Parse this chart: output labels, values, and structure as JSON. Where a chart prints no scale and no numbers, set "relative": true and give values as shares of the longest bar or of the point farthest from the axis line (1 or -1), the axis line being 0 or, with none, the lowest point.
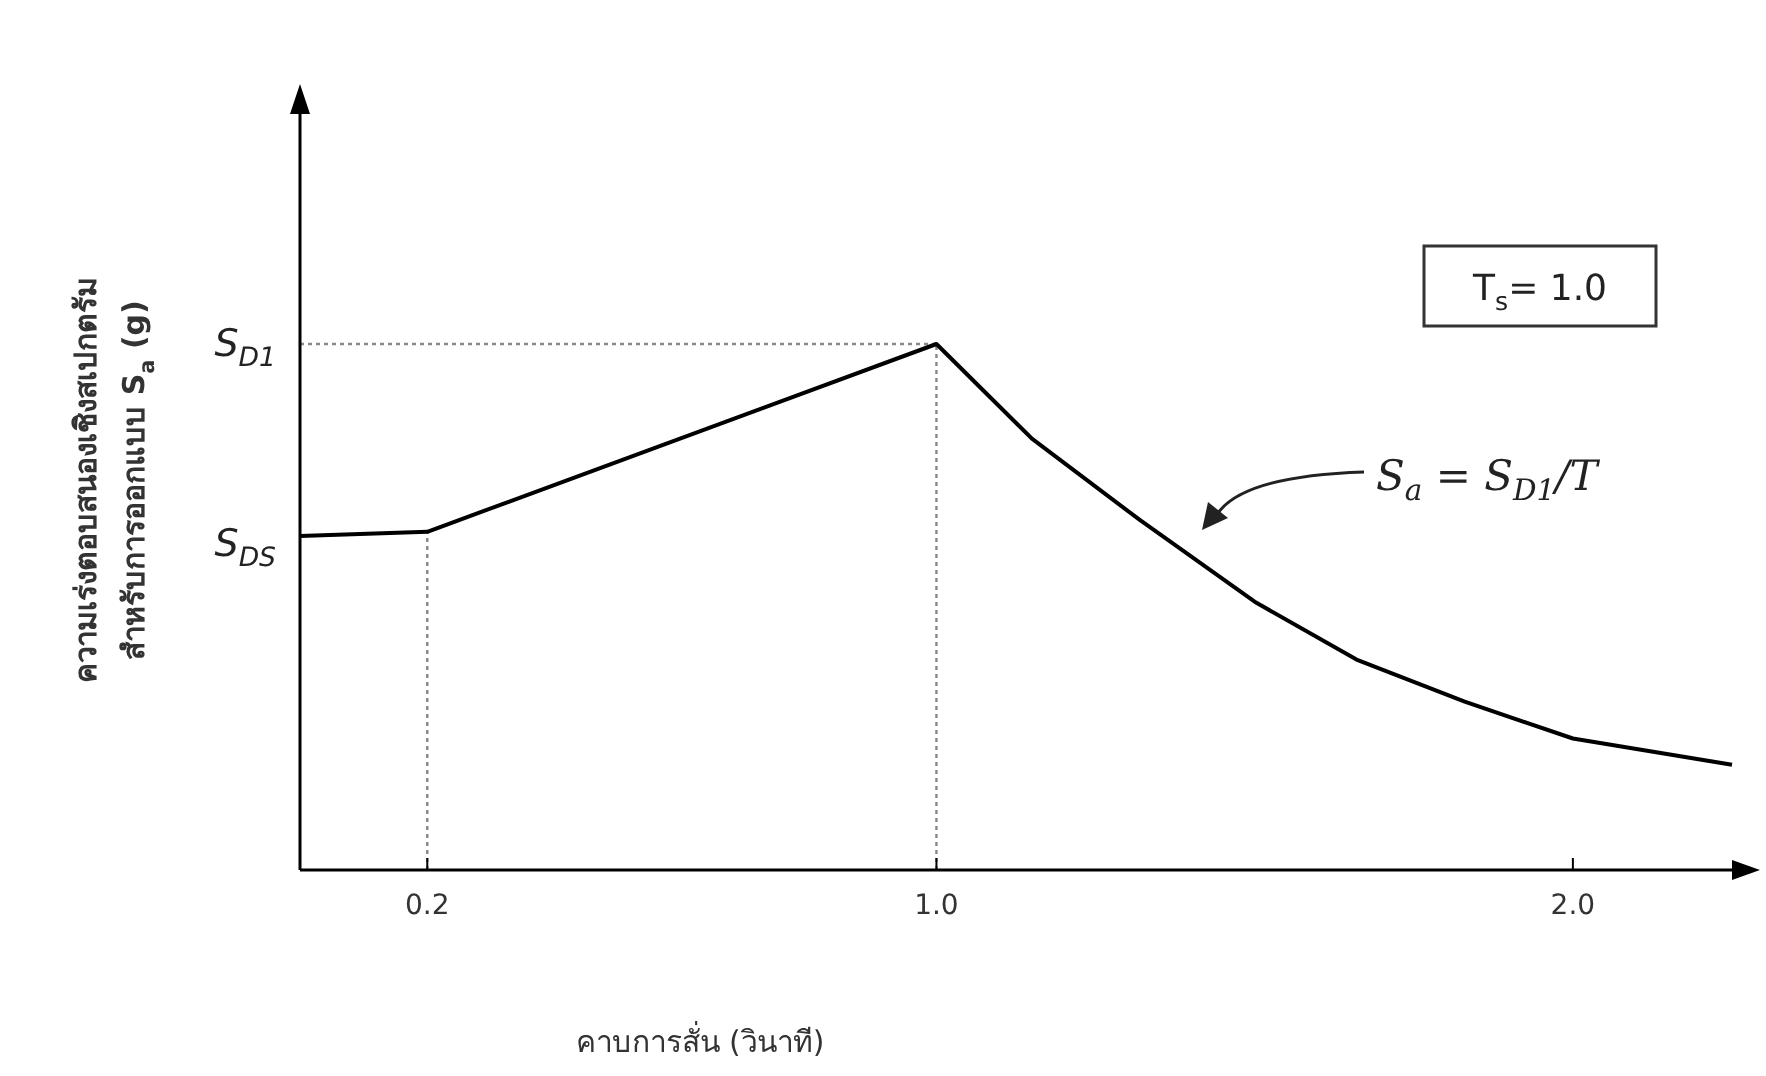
{
  "chart_data": {
    "type": "line",
    "relative": true,
    "xlabel": "คาบการสั่น (วินาที)",
    "ylabel": "ความเร่งตอบสนองเชิงสเปกตรัม สำหรับการออกแบบ S$_{a}$ (g)",
    "xlim": [
      0,
      2.25
    ],
    "xticks": [
      {
        "value": 0.2,
        "label": "0.2"
      },
      {
        "value": 1.0,
        "label": "1.0"
      },
      {
        "value": 2.0,
        "label": "2.0"
      }
    ],
    "series": [
      {
        "color": "#000000",
        "x": [
          0,
          0.2,
          1.0,
          1.15,
          1.32,
          1.5,
          1.66,
          1.83,
          2.0,
          2.25
        ],
        "values": [
          0.635,
          0.643,
          1,
          0.82,
          0.665,
          0.51,
          0.4,
          0.32,
          0.25,
          0.2
        ]
      }
    ],
    "ref_lines": [
      {
        "axis": "y",
        "value": 1,
        "label": "S$_{D1}$",
        "color": "#888888",
        "line_style": "dotted"
      },
      {
        "axis": "x",
        "value": 0.2,
        "color": "#888888",
        "line_style": "dotted"
      },
      {
        "axis": "x",
        "value": 1.0,
        "color": "#888888",
        "line_style": "dotted"
      }
    ],
    "annotations": [
      {
        "text": "S$_{DS}$",
        "x": 0,
        "y": 0.635
      },
      "S$_{a}$ = S$_{D1}$/T",
      "T$_{s}$= 1.0"
    ],
    "marker": "none",
    "line_style": "solid",
    "grid": false
  }
}
